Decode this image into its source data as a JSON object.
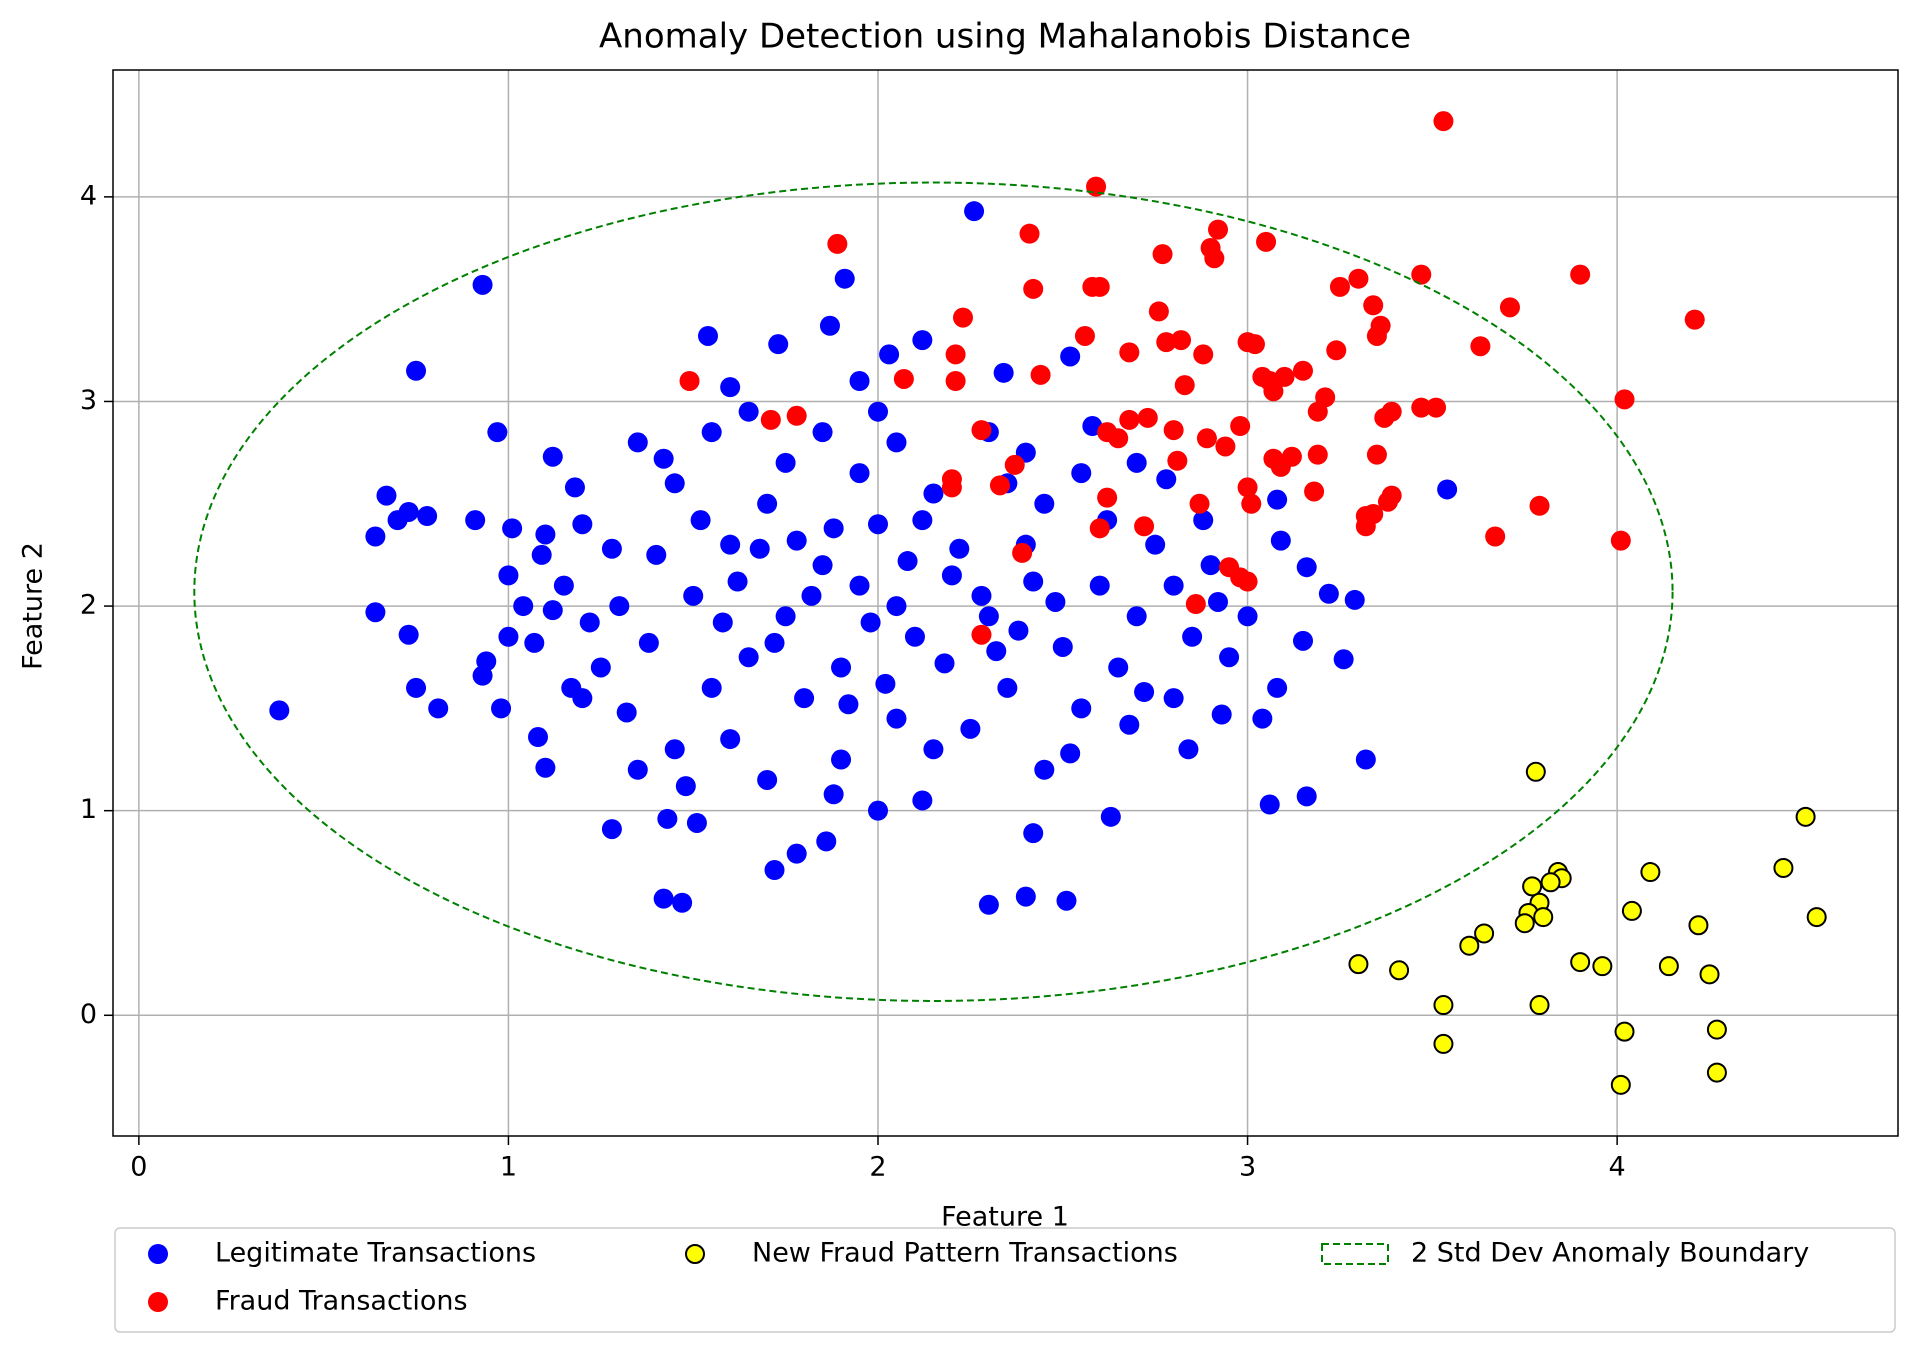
{
  "chart_data": {
    "type": "scatter",
    "title": "Anomaly Detection using Mahalanobis Distance",
    "x_label": "Feature 1",
    "y_label": "Feature 2",
    "xlim": [
      -0.07,
      4.76
    ],
    "ylim": [
      -0.59,
      4.62
    ],
    "xticks": [
      0,
      1,
      2,
      3,
      4
    ],
    "yticks": [
      0,
      1,
      2,
      3,
      4
    ],
    "grid": true,
    "legend_loc": "below",
    "series": [
      {
        "name": "Legitimate Transactions",
        "color": "#0000ff",
        "x": [
          0.38,
          0.93,
          1.91,
          2.26,
          0.75,
          0.97,
          0.64,
          0.67,
          0.7,
          0.73,
          0.78,
          0.91,
          0.64,
          0.73,
          0.75,
          0.81,
          0.93,
          0.94,
          0.98,
          1.01,
          1.0,
          1.04,
          1.09,
          1.07,
          1.08,
          1.1,
          1.12,
          1.17,
          1.28,
          1.42,
          1.47,
          1.43,
          1.51,
          1.72,
          1.78,
          1.86,
          2.3,
          2.4,
          2.51,
          2.42,
          2.63,
          3.06,
          3.16,
          3.32,
          3.26,
          3.29,
          3.22,
          3.16,
          3.15,
          3.08,
          3.04,
          3.09,
          3.08,
          3.54,
          2.93,
          2.84,
          1.54,
          1.73,
          1.87,
          2.03,
          2.12,
          2.34,
          2.52,
          1.6,
          1.95,
          2.05,
          1.85,
          2.1,
          1.75,
          2.2,
          1.6,
          2.3,
          1.9,
          2.0,
          1.7,
          2.4,
          1.5,
          2.5,
          1.8,
          2.15,
          1.65,
          2.35,
          1.4,
          2.6,
          1.95,
          2.05,
          1.55,
          2.45,
          1.3,
          2.7,
          1.85,
          2.15,
          1.45,
          2.55,
          1.25,
          2.75,
          2.0,
          1.9,
          1.35,
          2.65,
          1.2,
          2.8,
          1.6,
          2.4,
          1.75,
          2.25,
          1.55,
          2.45,
          1.15,
          2.85,
          1.7,
          2.3,
          1.45,
          2.55,
          1.98,
          2.08,
          1.82,
          2.18,
          1.62,
          2.28,
          1.88,
          2.12,
          1.72,
          2.38,
          1.92,
          2.02,
          1.52,
          2.48,
          1.68,
          2.22,
          1.78,
          2.32,
          1.58,
          2.42,
          1.38,
          2.62,
          1.28,
          2.72,
          1.22,
          2.78,
          1.18,
          2.88,
          1.32,
          2.68,
          1.12,
          2.92,
          1.48,
          2.52,
          1.42,
          2.58,
          1.88,
          2.12,
          1.95,
          2.05,
          2.0,
          1.65,
          2.35,
          2.7,
          2.8,
          1.2,
          1.35,
          2.9,
          2.95,
          3.0,
          1.1,
          1.0
        ],
        "values": [
          1.49,
          3.57,
          3.6,
          3.93,
          3.15,
          2.85,
          2.34,
          2.54,
          2.42,
          2.46,
          2.44,
          2.42,
          1.97,
          1.86,
          1.6,
          1.5,
          1.66,
          1.73,
          1.5,
          2.38,
          2.15,
          2.0,
          2.25,
          1.82,
          1.36,
          1.21,
          2.73,
          1.6,
          0.91,
          0.57,
          0.55,
          0.96,
          0.94,
          0.71,
          0.79,
          0.85,
          0.54,
          0.58,
          0.56,
          0.89,
          0.97,
          1.03,
          1.07,
          1.25,
          1.74,
          2.03,
          2.06,
          2.19,
          1.83,
          1.6,
          1.45,
          2.32,
          2.52,
          2.57,
          1.47,
          1.3,
          3.32,
          3.28,
          3.37,
          3.23,
          3.3,
          3.14,
          3.22,
          3.07,
          2.1,
          2.0,
          2.2,
          1.85,
          1.95,
          2.15,
          2.3,
          1.95,
          1.7,
          2.4,
          2.5,
          2.3,
          2.05,
          1.8,
          1.55,
          2.55,
          1.75,
          1.6,
          2.25,
          2.1,
          2.65,
          1.45,
          1.6,
          2.5,
          2.0,
          1.95,
          2.85,
          1.3,
          2.6,
          1.5,
          1.7,
          2.3,
          2.95,
          1.25,
          2.8,
          1.7,
          2.4,
          2.1,
          1.35,
          2.75,
          2.7,
          1.4,
          2.85,
          1.2,
          2.1,
          1.85,
          1.15,
          2.85,
          1.3,
          2.65,
          1.92,
          2.22,
          2.05,
          1.72,
          2.12,
          2.05,
          2.38,
          2.42,
          1.82,
          1.88,
          1.52,
          1.62,
          2.42,
          2.02,
          2.28,
          2.28,
          2.32,
          1.78,
          1.92,
          2.12,
          1.82,
          2.42,
          2.28,
          1.58,
          1.92,
          2.62,
          2.58,
          2.42,
          1.48,
          1.42,
          1.98,
          2.02,
          1.12,
          1.28,
          2.72,
          2.88,
          1.08,
          1.05,
          3.1,
          2.8,
          1.0,
          2.95,
          2.6,
          2.7,
          1.55,
          1.55,
          1.2,
          2.2,
          1.75,
          1.95,
          2.35,
          1.85
        ]
      },
      {
        "name": "Fraud Transactions",
        "color": "#ff0000",
        "x": [
          3.53,
          2.59,
          1.89,
          2.41,
          2.92,
          2.9,
          2.91,
          3.05,
          2.77,
          3.47,
          3.9,
          3.3,
          3.25,
          2.42,
          2.58,
          2.6,
          3.34,
          3.71,
          2.76,
          2.23,
          4.21,
          3.36,
          3.35,
          2.56,
          3.0,
          2.78,
          2.82,
          3.02,
          3.63,
          3.24,
          2.88,
          2.68,
          2.21,
          2.44,
          1.49,
          2.07,
          2.21,
          2.83,
          3.06,
          3.04,
          3.1,
          3.15,
          3.21,
          4.02,
          3.07,
          3.19,
          3.47,
          3.51,
          1.78,
          1.71,
          2.73,
          2.68,
          2.62,
          2.8,
          2.98,
          3.37,
          3.39,
          2.65,
          2.89,
          2.94,
          2.28,
          3.09,
          3.12,
          3.35,
          3.19,
          2.37,
          2.81,
          3.07,
          2.2,
          2.2,
          2.33,
          3.0,
          3.39,
          3.18,
          3.38,
          3.01,
          3.79,
          2.87,
          2.62,
          3.32,
          3.34,
          3.32,
          2.6,
          2.72,
          3.67,
          4.01,
          2.39,
          2.95,
          2.98,
          3.0,
          2.86,
          2.28
        ],
        "values": [
          4.37,
          4.05,
          3.77,
          3.82,
          3.84,
          3.75,
          3.7,
          3.78,
          3.72,
          3.62,
          3.62,
          3.6,
          3.56,
          3.55,
          3.56,
          3.56,
          3.47,
          3.46,
          3.44,
          3.41,
          3.4,
          3.37,
          3.32,
          3.32,
          3.29,
          3.29,
          3.3,
          3.28,
          3.27,
          3.25,
          3.23,
          3.24,
          3.23,
          3.13,
          3.1,
          3.11,
          3.1,
          3.08,
          3.1,
          3.12,
          3.12,
          3.15,
          3.02,
          3.01,
          3.05,
          2.95,
          2.97,
          2.97,
          2.93,
          2.91,
          2.92,
          2.91,
          2.85,
          2.86,
          2.88,
          2.92,
          2.95,
          2.82,
          2.82,
          2.78,
          2.86,
          2.68,
          2.73,
          2.74,
          2.74,
          2.69,
          2.71,
          2.72,
          2.62,
          2.58,
          2.59,
          2.58,
          2.54,
          2.56,
          2.51,
          2.5,
          2.49,
          2.5,
          2.53,
          2.44,
          2.45,
          2.39,
          2.38,
          2.39,
          2.34,
          2.32,
          2.26,
          2.19,
          2.14,
          2.12,
          2.01,
          1.86
        ]
      },
      {
        "name": "New Fraud Pattern Transactions",
        "color": "#ffff00",
        "edgecolor": "#000000",
        "x": [
          3.78,
          4.51,
          3.84,
          3.85,
          3.77,
          4.09,
          4.45,
          3.82,
          3.79,
          3.76,
          3.8,
          3.75,
          4.04,
          4.54,
          4.22,
          3.64,
          3.6,
          3.3,
          3.41,
          3.9,
          3.96,
          4.14,
          4.25,
          3.53,
          3.79,
          3.53,
          4.02,
          4.27,
          4.01,
          4.27
        ],
        "values": [
          1.19,
          0.97,
          0.7,
          0.67,
          0.63,
          0.7,
          0.72,
          0.65,
          0.55,
          0.5,
          0.48,
          0.45,
          0.51,
          0.48,
          0.44,
          0.4,
          0.34,
          0.25,
          0.22,
          0.26,
          0.24,
          0.24,
          0.2,
          0.05,
          0.05,
          -0.14,
          -0.08,
          -0.07,
          -0.34,
          -0.28
        ]
      },
      {
        "name": "2 Std Dev Anomaly Boundary",
        "color": "#008000",
        "kind": "ellipse",
        "center_x": 2.15,
        "center_y": 2.07,
        "rx": 2.0,
        "ry": 2.0
      }
    ]
  }
}
